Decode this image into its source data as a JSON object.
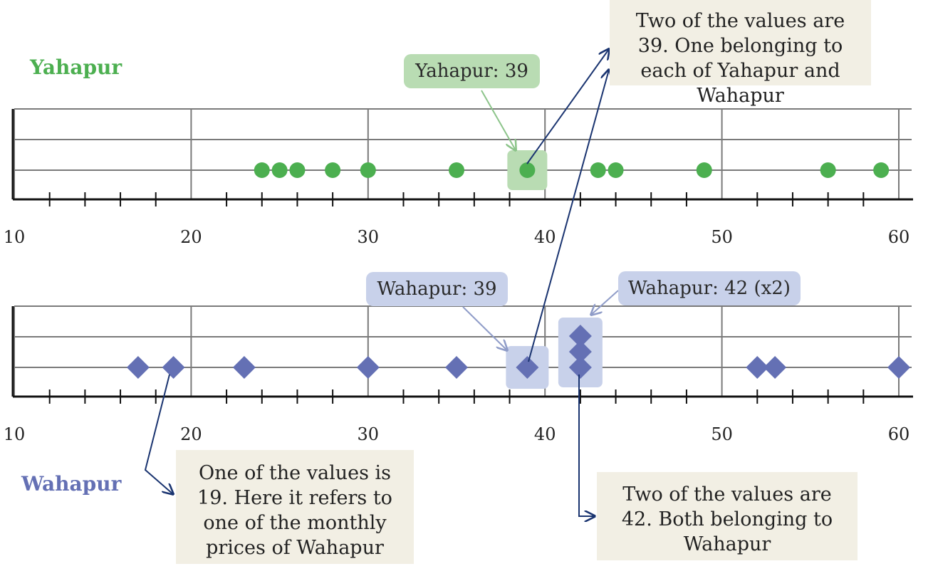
{
  "chart_data": [
    {
      "type": "scatter",
      "name": "Yahapur",
      "marker": "circle",
      "color": "#4caf50",
      "xlim": [
        10,
        60
      ],
      "ticks": [
        10,
        20,
        30,
        40,
        50,
        60
      ],
      "values": [
        24,
        25,
        26,
        28,
        30,
        35,
        39,
        43,
        44,
        49,
        56,
        59
      ]
    },
    {
      "type": "scatter",
      "name": "Wahapur",
      "marker": "diamond",
      "color": "#6470b4",
      "xlim": [
        10,
        60
      ],
      "ticks": [
        10,
        20,
        30,
        40,
        50,
        60
      ],
      "values": [
        17,
        19,
        23,
        30,
        35,
        39,
        42,
        42,
        52,
        53,
        60
      ]
    }
  ],
  "labels": {
    "yahapur": "Yahapur",
    "wahapur": "Wahapur"
  },
  "callouts": {
    "yahapur_39": "Yahapur: 39",
    "wahapur_39": "Wahapur: 39",
    "wahapur_42": "Wahapur: 42 (x2)"
  },
  "notes": {
    "note_39": "Two of the values are 39. One belonging to each of Yahapur and Wahapur",
    "note_19": "One of the values is 19. Here it refers to one of the monthly prices of Wahapur",
    "note_42": "Two of the values are 42. Both belonging to Wahapur"
  },
  "colors": {
    "yahapur": "#4caf50",
    "wahapur": "#6470b4",
    "yahapur_highlight": "#b9dcb3",
    "wahapur_highlight": "#c8d1ea",
    "arrow": "#1a3470",
    "grid": "#7a7a7a",
    "note_bg": "#f2efe4"
  }
}
